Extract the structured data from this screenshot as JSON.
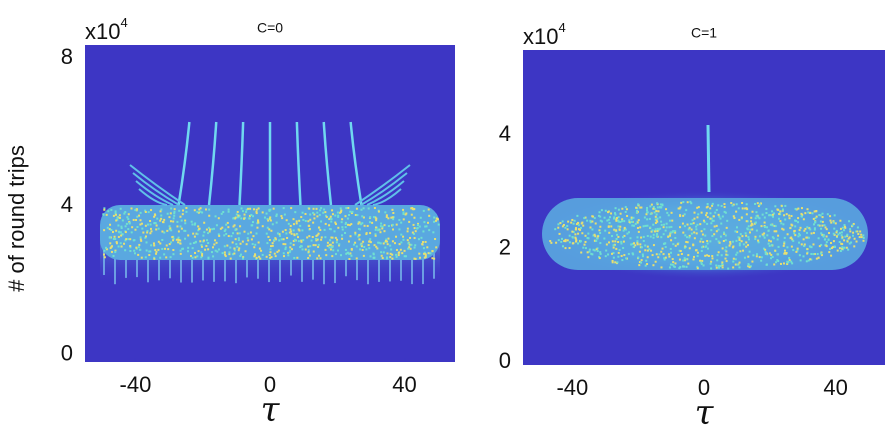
{
  "chart_data": [
    {
      "type": "heatmap",
      "title": "C=0",
      "scale_label": "x10",
      "scale_exponent": "4",
      "ylabel": "# of round trips",
      "xlabel": "τ",
      "xlim": [
        -55,
        55
      ],
      "xticks": [
        -40,
        0,
        40
      ],
      "ylim": [
        -0.2,
        8.35
      ],
      "yticks": [
        0,
        4,
        8
      ]
    },
    {
      "type": "heatmap",
      "title": "C=1",
      "scale_label": "x10",
      "scale_exponent": "4",
      "xlabel": "τ",
      "xlim": [
        -55,
        55
      ],
      "xticks": [
        -40,
        0,
        40
      ],
      "ylim": [
        -0.05,
        5.5
      ],
      "yticks": [
        0,
        2,
        4
      ]
    }
  ]
}
